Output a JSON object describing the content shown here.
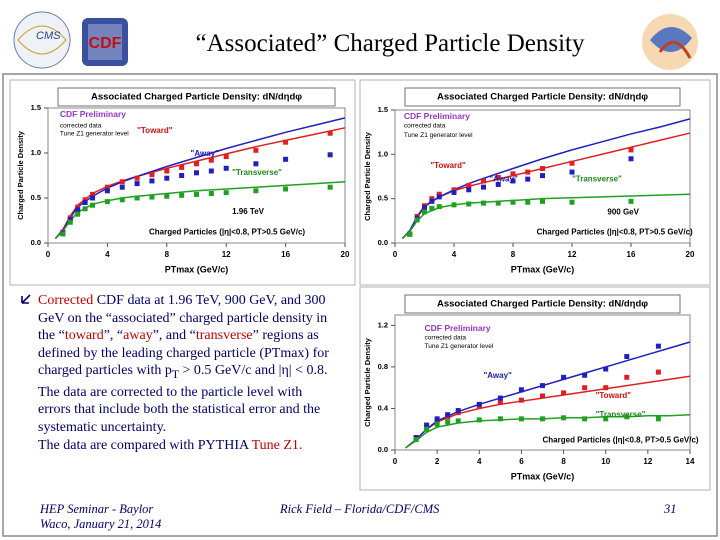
{
  "slide": {
    "title": "“Associated” Charged Particle Density",
    "bullet": [
      "Corrected",
      " CDF data at 1.96 TeV, 900 GeV, and 300 GeV on the “associated” charged particle density in the “",
      "toward",
      "”, “",
      "away",
      "”, and “",
      "transverse",
      "” regions as defined by the leading charged particle (PTmax) for charged particles with p",
      "T",
      " > 0.5 GeV/c and |η| < 0.8. The data are corrected to the particle level with errors that include both the statistical error and the systematic uncertainty."
    ],
    "bullet_end": [
      "The data are compared with PYTHIA ",
      "Tune Z1."
    ],
    "footer_left": [
      "HEP Seminar - Baylor",
      "Waco, January 21, 2014"
    ],
    "footer_center": "Rick Field – Florida/CDF/CMS",
    "page": "31"
  },
  "chart_data": [
    {
      "type": "line",
      "title": "Associated Charged Particle Density: dN/dηdφ",
      "xlabel": "PTmax (GeV/c)",
      "ylabel": "Charged Particle Density",
      "annotations": [
        {
          "text": "CDF Preliminary",
          "color": "#9933cc"
        },
        {
          "text": "corrected data",
          "color": "#000000"
        },
        {
          "text": "Tune Z1 generator level",
          "color": "#000000"
        },
        {
          "text": "\"Toward\"",
          "color": "#d01010"
        },
        {
          "text": "\"Away\"",
          "color": "#1a1ab0"
        },
        {
          "text": "\"Transverse\"",
          "color": "#1a8a1a"
        },
        {
          "text": "1.96 TeV",
          "color": "#000000"
        },
        {
          "text": "Charged Particles (|η|<0.8, PT>0.5 GeV/c)",
          "color": "#000000"
        }
      ],
      "xlim": [
        0,
        20
      ],
      "ylim": [
        0,
        1.5
      ],
      "xticks": [
        0,
        4,
        8,
        12,
        16,
        20
      ],
      "yticks": [
        {
          "value": 0,
          "label": "0.0"
        },
        0.5,
        {
          "value": 1,
          "label": "1.0"
        },
        1.5
      ],
      "series": [
        {
          "style": "line",
          "color": "#e02020",
          "x": [
            0.5,
            1,
            1.5,
            2,
            3,
            4,
            5,
            6,
            8,
            10,
            12,
            14,
            16,
            18,
            20
          ],
          "values": [
            0.05,
            0.15,
            0.3,
            0.42,
            0.55,
            0.63,
            0.69,
            0.74,
            0.83,
            0.91,
            0.99,
            1.07,
            1.14,
            1.21,
            1.28
          ]
        },
        {
          "style": "line",
          "color": "#2020c0",
          "x": [
            0.5,
            1,
            1.5,
            2,
            3,
            4,
            5,
            6,
            8,
            10,
            12,
            14,
            16,
            18,
            20
          ],
          "values": [
            0.05,
            0.14,
            0.28,
            0.4,
            0.52,
            0.61,
            0.68,
            0.74,
            0.85,
            0.95,
            1.05,
            1.14,
            1.23,
            1.31,
            1.39
          ]
        },
        {
          "style": "line",
          "color": "#20a020",
          "x": [
            0.5,
            1,
            1.5,
            2,
            3,
            4,
            5,
            6,
            8,
            10,
            12,
            14,
            16,
            18,
            20
          ],
          "values": [
            0.05,
            0.13,
            0.25,
            0.34,
            0.43,
            0.47,
            0.5,
            0.52,
            0.55,
            0.58,
            0.6,
            0.62,
            0.64,
            0.66,
            0.68
          ]
        },
        {
          "style": "markers",
          "color": "#e02020",
          "x": [
            1,
            1.5,
            2,
            2.5,
            3,
            4,
            5,
            6,
            7,
            8,
            9,
            10,
            11,
            12,
            14,
            16,
            19
          ],
          "values": [
            0.12,
            0.28,
            0.4,
            0.48,
            0.54,
            0.62,
            0.68,
            0.72,
            0.76,
            0.8,
            0.84,
            0.88,
            0.92,
            0.96,
            1.03,
            1.12,
            1.22
          ]
        },
        {
          "style": "markers",
          "color": "#2020c0",
          "x": [
            1,
            1.5,
            2,
            2.5,
            3,
            4,
            5,
            6,
            7,
            8,
            9,
            10,
            11,
            12,
            14,
            16,
            19
          ],
          "values": [
            0.11,
            0.26,
            0.37,
            0.45,
            0.5,
            0.58,
            0.62,
            0.66,
            0.69,
            0.72,
            0.75,
            0.78,
            0.8,
            0.83,
            0.88,
            0.93,
            0.98
          ]
        },
        {
          "style": "markers",
          "color": "#20a020",
          "x": [
            1,
            1.5,
            2,
            2.5,
            3,
            4,
            5,
            6,
            7,
            8,
            9,
            10,
            11,
            12,
            14,
            16,
            19
          ],
          "values": [
            0.1,
            0.23,
            0.32,
            0.38,
            0.42,
            0.46,
            0.48,
            0.5,
            0.51,
            0.52,
            0.53,
            0.54,
            0.55,
            0.56,
            0.58,
            0.6,
            0.62
          ]
        }
      ]
    },
    {
      "type": "line",
      "title": "Associated Charged Particle Density: dN/dηdφ",
      "xlabel": "PTmax (GeV/c)",
      "ylabel": "Charged Particle Density",
      "annotations": [
        {
          "text": "CDF Preliminary",
          "color": "#9933cc"
        },
        {
          "text": "corrected data",
          "color": "#000000"
        },
        {
          "text": "Tune Z1 generator level",
          "color": "#000000"
        },
        {
          "text": "\"Toward\"",
          "color": "#d01010"
        },
        {
          "text": "\"Away\"",
          "color": "#1a1ab0"
        },
        {
          "text": "\"Transverse\"",
          "color": "#1a8a1a"
        },
        {
          "text": "900 GeV",
          "color": "#000000"
        },
        {
          "text": "Charged Particles (|η|<0.8, PT>0.5 GeV/c)",
          "color": "#000000"
        }
      ],
      "xlim": [
        0,
        20
      ],
      "ylim": [
        0,
        1.5
      ],
      "xticks": [
        0,
        4,
        8,
        12,
        16,
        20
      ],
      "yticks": [
        {
          "value": 0,
          "label": "0.0"
        },
        0.5,
        {
          "value": 1,
          "label": "1.0"
        },
        1.5
      ],
      "series": [
        {
          "style": "line",
          "color": "#e02020",
          "x": [
            0.5,
            1,
            1.5,
            2,
            3,
            4,
            5,
            6,
            8,
            10,
            12,
            14,
            16,
            18,
            20
          ],
          "values": [
            0.05,
            0.14,
            0.3,
            0.42,
            0.52,
            0.59,
            0.64,
            0.68,
            0.76,
            0.84,
            0.92,
            1.0,
            1.08,
            1.16,
            1.24
          ]
        },
        {
          "style": "line",
          "color": "#2020c0",
          "x": [
            0.5,
            1,
            1.5,
            2,
            3,
            4,
            5,
            6,
            8,
            10,
            12,
            14,
            16,
            18,
            20
          ],
          "values": [
            0.05,
            0.14,
            0.29,
            0.41,
            0.52,
            0.6,
            0.67,
            0.73,
            0.84,
            0.95,
            1.05,
            1.14,
            1.23,
            1.31,
            1.4
          ]
        },
        {
          "style": "line",
          "color": "#20a020",
          "x": [
            0.5,
            1,
            1.5,
            2,
            3,
            4,
            5,
            6,
            8,
            10,
            12,
            14,
            16,
            18,
            20
          ],
          "values": [
            0.05,
            0.13,
            0.25,
            0.33,
            0.4,
            0.43,
            0.45,
            0.46,
            0.48,
            0.5,
            0.51,
            0.52,
            0.53,
            0.54,
            0.55
          ]
        },
        {
          "style": "markers",
          "color": "#e02020",
          "x": [
            1,
            1.5,
            2,
            2.5,
            3,
            4,
            5,
            6,
            7,
            8,
            9,
            10,
            12,
            16
          ],
          "values": [
            0.1,
            0.3,
            0.42,
            0.5,
            0.55,
            0.6,
            0.65,
            0.7,
            0.74,
            0.78,
            0.8,
            0.84,
            0.9,
            1.05
          ]
        },
        {
          "style": "markers",
          "color": "#2020c0",
          "x": [
            1,
            1.5,
            2,
            2.5,
            3,
            4,
            5,
            6,
            7,
            8,
            9,
            10,
            12,
            16
          ],
          "values": [
            0.1,
            0.28,
            0.4,
            0.47,
            0.52,
            0.57,
            0.6,
            0.63,
            0.66,
            0.7,
            0.72,
            0.76,
            0.8,
            0.95
          ]
        },
        {
          "style": "markers",
          "color": "#20a020",
          "x": [
            1,
            1.5,
            2,
            2.5,
            3,
            4,
            5,
            6,
            7,
            8,
            9,
            10,
            12,
            16
          ],
          "values": [
            0.1,
            0.26,
            0.35,
            0.39,
            0.41,
            0.43,
            0.44,
            0.45,
            0.45,
            0.46,
            0.46,
            0.47,
            0.46,
            0.47
          ]
        }
      ]
    },
    {
      "type": "line",
      "title": "Associated Charged Particle Density: dN/dηdφ",
      "xlabel": "PTmax (GeV/c)",
      "ylabel": "Charged Particle Density",
      "annotations": [
        {
          "text": "CDF Preliminary",
          "color": "#9933cc"
        },
        {
          "text": "corrected data",
          "color": "#000000"
        },
        {
          "text": "Tune Z1 generator level",
          "color": "#000000"
        },
        {
          "text": "\"Away\"",
          "color": "#1a1ab0"
        },
        {
          "text": "\"Toward\"",
          "color": "#d01010"
        },
        {
          "text": "\"Transverse\"",
          "color": "#1a8a1a"
        },
        {
          "text": "Charged Particles (|η|<0.8, PT>0.5 GeV/c)",
          "color": "#000000"
        }
      ],
      "xlim": [
        0,
        14
      ],
      "ylim": [
        0,
        1.3
      ],
      "xticks": [
        0,
        2,
        4,
        6,
        8,
        10,
        12,
        14
      ],
      "yticks": [
        {
          "value": 0,
          "label": "0.0"
        },
        0.4,
        0.8,
        1.2
      ],
      "series": [
        {
          "style": "line",
          "color": "#e02020",
          "x": [
            0.5,
            1,
            1.5,
            2,
            3,
            4,
            5,
            6,
            7,
            8,
            9,
            10,
            11,
            12,
            13,
            14
          ],
          "values": [
            0.02,
            0.1,
            0.2,
            0.27,
            0.35,
            0.4,
            0.44,
            0.47,
            0.5,
            0.53,
            0.56,
            0.59,
            0.62,
            0.65,
            0.68,
            0.71
          ]
        },
        {
          "style": "line",
          "color": "#2020c0",
          "x": [
            0.5,
            1,
            1.5,
            2,
            3,
            4,
            5,
            6,
            7,
            8,
            9,
            10,
            11,
            12,
            13,
            14
          ],
          "values": [
            0.02,
            0.1,
            0.2,
            0.28,
            0.37,
            0.44,
            0.5,
            0.56,
            0.62,
            0.68,
            0.74,
            0.8,
            0.86,
            0.92,
            0.98,
            1.04
          ]
        },
        {
          "style": "line",
          "color": "#20a020",
          "x": [
            0.5,
            1,
            1.5,
            2,
            3,
            4,
            5,
            6,
            7,
            8,
            9,
            10,
            11,
            12,
            13,
            14
          ],
          "values": [
            0.02,
            0.09,
            0.17,
            0.22,
            0.26,
            0.28,
            0.29,
            0.3,
            0.3,
            0.31,
            0.31,
            0.32,
            0.32,
            0.33,
            0.33,
            0.34
          ]
        },
        {
          "style": "markers",
          "color": "#e02020",
          "x": [
            1,
            1.5,
            2,
            2.5,
            3,
            4,
            5,
            6,
            7,
            8,
            9,
            10,
            11,
            12.5
          ],
          "values": [
            0.12,
            0.22,
            0.28,
            0.32,
            0.36,
            0.42,
            0.46,
            0.48,
            0.52,
            0.55,
            0.6,
            0.6,
            0.7,
            0.75
          ]
        },
        {
          "style": "markers",
          "color": "#2020c0",
          "x": [
            1,
            1.5,
            2,
            2.5,
            3,
            4,
            5,
            6,
            7,
            8,
            9,
            10,
            11,
            12.5
          ],
          "values": [
            0.12,
            0.24,
            0.3,
            0.34,
            0.38,
            0.44,
            0.5,
            0.58,
            0.62,
            0.7,
            0.72,
            0.78,
            0.9,
            1.0
          ]
        },
        {
          "style": "markers",
          "color": "#20a020",
          "x": [
            1,
            1.5,
            2,
            2.5,
            3,
            4,
            5,
            6,
            7,
            8,
            9,
            10,
            11,
            12.5
          ],
          "values": [
            0.1,
            0.2,
            0.25,
            0.27,
            0.28,
            0.29,
            0.3,
            0.3,
            0.3,
            0.31,
            0.3,
            0.3,
            0.32,
            0.3
          ]
        }
      ]
    }
  ]
}
